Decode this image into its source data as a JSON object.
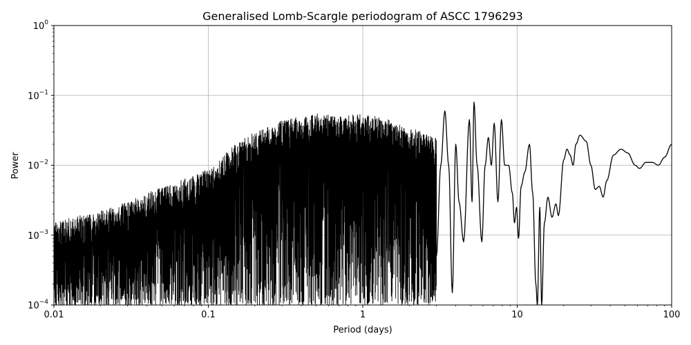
{
  "chart_data": {
    "type": "line",
    "title": "Generalised Lomb-Scargle periodogram of ASCC 1796293",
    "xlabel": "Period (days)",
    "ylabel": "Power",
    "xscale": "log",
    "yscale": "log",
    "xlim": [
      0.01,
      100
    ],
    "ylim": [
      0.0001,
      1
    ],
    "grid": true,
    "colors": {
      "line": "#000000",
      "grid": "#b0b0b0",
      "background": "#ffffff"
    },
    "xticks": [
      {
        "value": 0.01,
        "label": "0.01"
      },
      {
        "value": 0.1,
        "label": "0.1"
      },
      {
        "value": 1,
        "label": "1"
      },
      {
        "value": 10,
        "label": "10"
      },
      {
        "value": 100,
        "label": "100"
      }
    ],
    "yticks": [
      {
        "value": 0.0001,
        "base": "10",
        "exp": "−4"
      },
      {
        "value": 0.001,
        "base": "10",
        "exp": "−3"
      },
      {
        "value": 0.01,
        "base": "10",
        "exp": "−2"
      },
      {
        "value": 0.1,
        "base": "10",
        "exp": "−1"
      },
      {
        "value": 1,
        "base": "10",
        "exp": "0"
      }
    ],
    "series": [
      {
        "style": "dense-oscillation",
        "envelope": [
          [
            0.01,
            0.0015
          ],
          [
            0.015,
            0.002
          ],
          [
            0.02,
            0.0022
          ],
          [
            0.03,
            0.003
          ],
          [
            0.05,
            0.005
          ],
          [
            0.08,
            0.007
          ],
          [
            0.1,
            0.009
          ],
          [
            0.15,
            0.02
          ],
          [
            0.2,
            0.03
          ],
          [
            0.3,
            0.045
          ],
          [
            0.4,
            0.05
          ],
          [
            0.5,
            0.055
          ],
          [
            0.7,
            0.05
          ],
          [
            1.0,
            0.055
          ],
          [
            1.5,
            0.045
          ],
          [
            2.0,
            0.035
          ],
          [
            3.0,
            0.025
          ]
        ],
        "floor": 0.0001
      },
      {
        "style": "smooth",
        "points": [
          [
            3.0,
            0.0005
          ],
          [
            3.2,
            0.01
          ],
          [
            3.4,
            0.06
          ],
          [
            3.6,
            0.01
          ],
          [
            3.8,
            0.00015
          ],
          [
            4.0,
            0.02
          ],
          [
            4.2,
            0.003
          ],
          [
            4.5,
            0.0008
          ],
          [
            4.9,
            0.045
          ],
          [
            5.1,
            0.003
          ],
          [
            5.25,
            0.08
          ],
          [
            5.5,
            0.01
          ],
          [
            5.9,
            0.0008
          ],
          [
            6.2,
            0.01
          ],
          [
            6.5,
            0.025
          ],
          [
            6.8,
            0.01
          ],
          [
            7.1,
            0.04
          ],
          [
            7.5,
            0.003
          ],
          [
            7.9,
            0.045
          ],
          [
            8.3,
            0.01
          ],
          [
            8.8,
            0.01
          ],
          [
            9.3,
            0.004
          ],
          [
            9.6,
            0.0015
          ],
          [
            9.9,
            0.0025
          ],
          [
            10.2,
            0.0009
          ],
          [
            10.6,
            0.005
          ],
          [
            11.2,
            0.008
          ],
          [
            12.0,
            0.02
          ],
          [
            12.6,
            0.004
          ],
          [
            13.2,
            0.0002
          ],
          [
            13.5,
            0.0001
          ],
          [
            14.0,
            0.0025
          ],
          [
            14.4,
            0.0001
          ],
          [
            15.0,
            0.0015
          ],
          [
            15.8,
            0.0035
          ],
          [
            16.8,
            0.0018
          ],
          [
            17.8,
            0.0028
          ],
          [
            18.5,
            0.0019
          ],
          [
            20.0,
            0.012
          ],
          [
            21.0,
            0.017
          ],
          [
            22.0,
            0.014
          ],
          [
            23.0,
            0.01
          ],
          [
            24.0,
            0.02
          ],
          [
            25.5,
            0.027
          ],
          [
            28.0,
            0.022
          ],
          [
            30.0,
            0.01
          ],
          [
            32.0,
            0.0045
          ],
          [
            34.0,
            0.005
          ],
          [
            36.0,
            0.0035
          ],
          [
            38.0,
            0.006
          ],
          [
            42.0,
            0.014
          ],
          [
            47.0,
            0.017
          ],
          [
            52.0,
            0.015
          ],
          [
            58.0,
            0.01
          ],
          [
            62.0,
            0.009
          ],
          [
            68.0,
            0.011
          ],
          [
            75.0,
            0.011
          ],
          [
            82.0,
            0.01
          ],
          [
            90.0,
            0.013
          ],
          [
            100.0,
            0.02
          ]
        ]
      }
    ]
  }
}
